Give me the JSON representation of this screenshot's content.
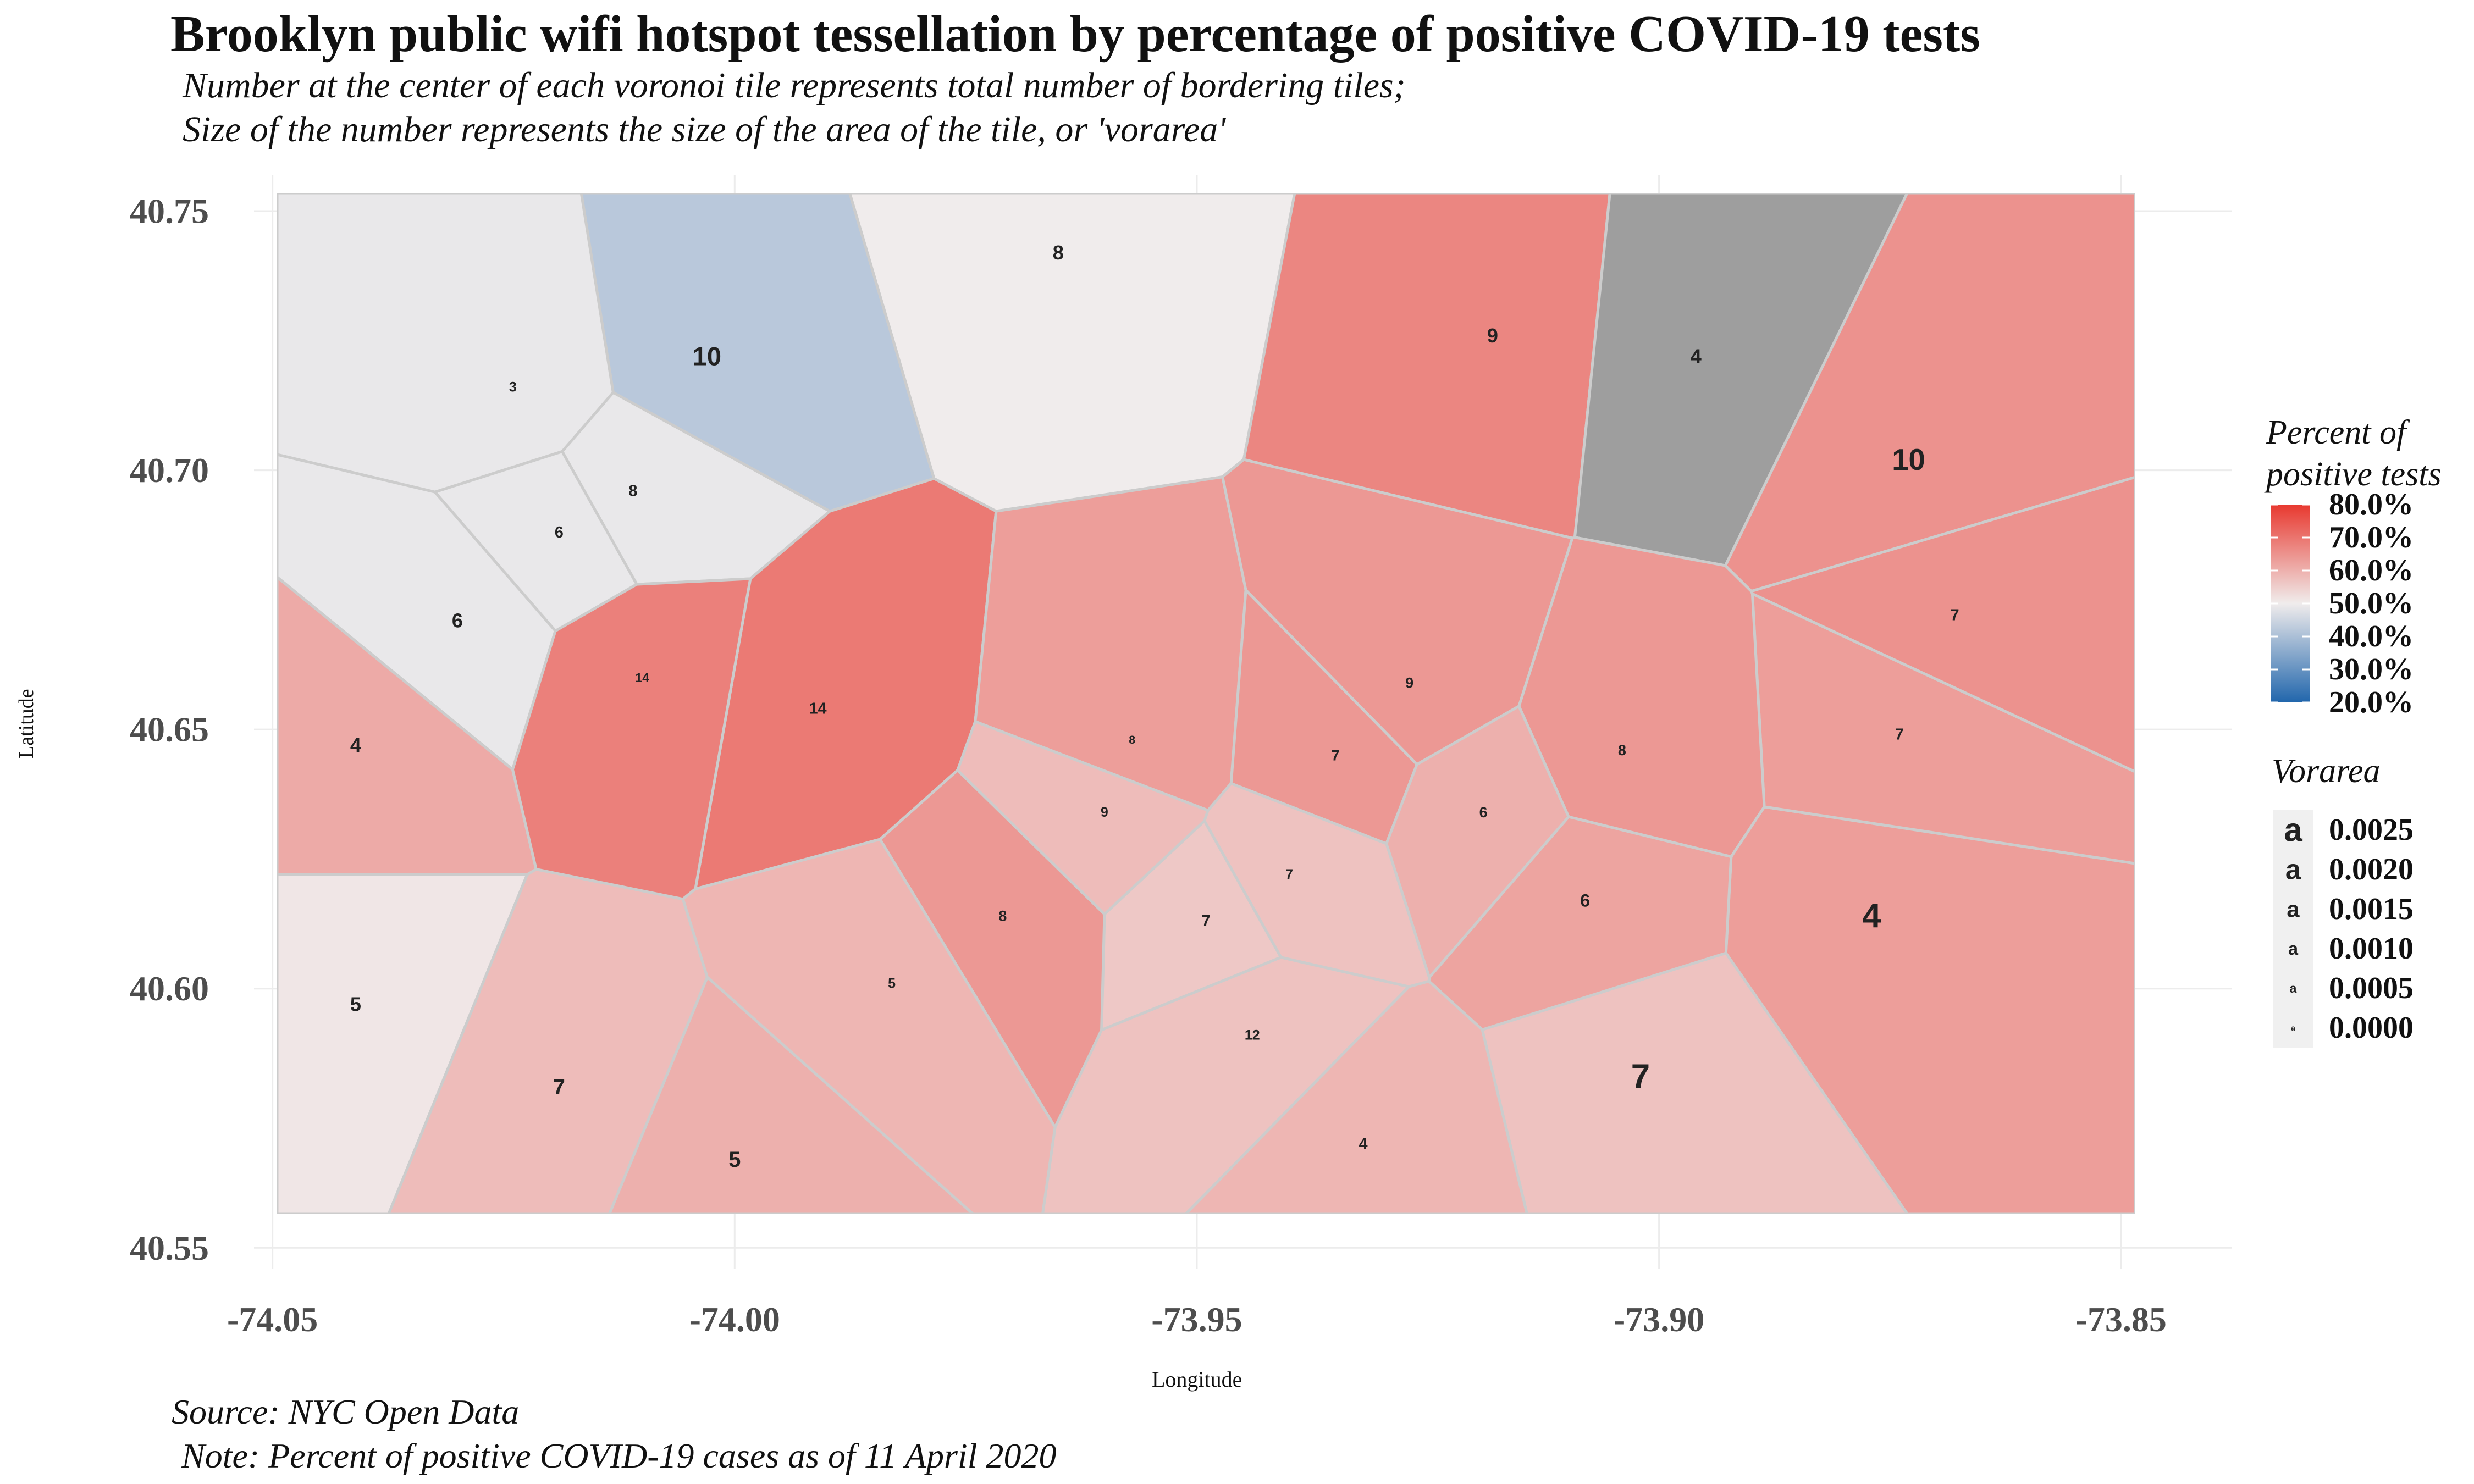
{
  "title": "Brooklyn public wifi hotspot tessellation by percentage of positive COVID-19 tests",
  "subtitle": [
    "Number at the center of each voronoi tile represents total number of bordering tiles;",
    "Size of the number represents the size of the area of the tile, or 'vorarea'"
  ],
  "caption": [
    "Source: NYC Open Data",
    "Note: Percent of positive COVID-19 cases as of 11 April 2020"
  ],
  "colors": {
    "low": "#2166ac",
    "mid": "#f0ecec",
    "high": "#e8382f",
    "tile_border": "#cccccc",
    "na_fill": "#9e9e9e",
    "grid": "#ececec"
  },
  "chart_data": {
    "type": "heatmap",
    "subtype": "voronoi tessellation map",
    "xlabel": "Longitude",
    "ylabel": "Latitude",
    "xlim": [
      -74.052,
      -73.838
    ],
    "ylim": [
      40.546,
      40.757
    ],
    "x_ticks": [
      -74.05,
      -74.0,
      -73.95,
      -73.9,
      -73.85
    ],
    "x_tick_labels": [
      "-74.05",
      "-74.00",
      "-73.95",
      "-73.90",
      "-73.85"
    ],
    "y_ticks": [
      40.55,
      40.6,
      40.65,
      40.7,
      40.75
    ],
    "y_tick_labels": [
      "40.55",
      "40.60",
      "40.65",
      "40.70",
      "40.75"
    ],
    "grid": true,
    "legend": {
      "fill_title": [
        "Percent of",
        "positive tests"
      ],
      "fill_range": [
        20,
        80
      ],
      "fill_midpoint": 50,
      "fill_labels": [
        "80.0%",
        "70.0%",
        "60.0%",
        "50.0%",
        "40.0%",
        "30.0%",
        "20.0%"
      ],
      "fill_values": [
        80,
        70,
        60,
        50,
        40,
        30,
        20
      ],
      "size_title": "Vorarea",
      "size_labels": [
        "0.0025",
        "0.0020",
        "0.0015",
        "0.0010",
        "0.0005",
        "0.0000"
      ],
      "size_values": [
        0.0025,
        0.002,
        0.0015,
        0.001,
        0.0005,
        0
      ],
      "size_key_glyph": "a",
      "placement": "right"
    },
    "tile_labels": [
      {
        "lon": -73.965,
        "lat": 40.742,
        "n": 8,
        "area": 0.0012,
        "pct": 50
      },
      {
        "lon": -74.003,
        "lat": 40.722,
        "n": 10,
        "area": 0.0018,
        "pct": 42
      },
      {
        "lon": -73.918,
        "lat": 40.726,
        "n": 9,
        "area": 0.0012,
        "pct": 67
      },
      {
        "lon": -73.896,
        "lat": 40.722,
        "n": 4,
        "area": 0.0012,
        "pct": null
      },
      {
        "lon": -73.873,
        "lat": 40.702,
        "n": 10,
        "area": 0.0022,
        "pct": 65
      },
      {
        "lon": -74.024,
        "lat": 40.716,
        "n": 3,
        "area": 0.0006,
        "pct": 49
      },
      {
        "lon": -74.011,
        "lat": 40.696,
        "n": 8,
        "area": 0.0008,
        "pct": 49
      },
      {
        "lon": -74.019,
        "lat": 40.688,
        "n": 6,
        "area": 0.0008,
        "pct": 49
      },
      {
        "lon": -74.03,
        "lat": 40.671,
        "n": 6,
        "area": 0.0012,
        "pct": 49
      },
      {
        "lon": -74.041,
        "lat": 40.647,
        "n": 4,
        "area": 0.0012,
        "pct": 61
      },
      {
        "lon": -74.041,
        "lat": 40.597,
        "n": 5,
        "area": 0.0012,
        "pct": 51
      },
      {
        "lon": -74.019,
        "lat": 40.581,
        "n": 7,
        "area": 0.0014,
        "pct": 58
      },
      {
        "lon": -74.0,
        "lat": 40.567,
        "n": 5,
        "area": 0.0014,
        "pct": 60
      },
      {
        "lon": -73.902,
        "lat": 40.583,
        "n": 7,
        "area": 0.0026,
        "pct": 57
      },
      {
        "lon": -73.877,
        "lat": 40.614,
        "n": 4,
        "area": 0.0026,
        "pct": 63
      },
      {
        "lon": -73.874,
        "lat": 40.649,
        "n": 7,
        "area": 0.0008,
        "pct": 63
      },
      {
        "lon": -73.868,
        "lat": 40.672,
        "n": 7,
        "area": 0.0008,
        "pct": 65
      },
      {
        "lon": -73.908,
        "lat": 40.617,
        "n": 6,
        "area": 0.001,
        "pct": 62
      },
      {
        "lon": -73.991,
        "lat": 40.654,
        "n": 14,
        "area": 0.0008,
        "pct": 69
      },
      {
        "lon": -74.01,
        "lat": 40.66,
        "n": 14,
        "area": 0.0005,
        "pct": 68
      },
      {
        "lon": -73.949,
        "lat": 40.613,
        "n": 7,
        "area": 0.0008,
        "pct": 56
      },
      {
        "lon": -73.944,
        "lat": 40.591,
        "n": 12,
        "area": 0.0006,
        "pct": 57
      },
      {
        "lon": -73.932,
        "lat": 40.57,
        "n": 4,
        "area": 0.0008,
        "pct": 59
      },
      {
        "lon": -73.983,
        "lat": 40.601,
        "n": 5,
        "area": 0.0006,
        "pct": 59
      },
      {
        "lon": -73.971,
        "lat": 40.614,
        "n": 8,
        "area": 0.0007,
        "pct": 64
      },
      {
        "lon": -73.957,
        "lat": 40.648,
        "n": 8,
        "area": 0.0004,
        "pct": 63
      },
      {
        "lon": -73.927,
        "lat": 40.659,
        "n": 9,
        "area": 0.0007,
        "pct": 64
      },
      {
        "lon": -73.935,
        "lat": 40.645,
        "n": 7,
        "area": 0.0007,
        "pct": 64
      },
      {
        "lon": -73.919,
        "lat": 40.634,
        "n": 6,
        "area": 0.0007,
        "pct": 60
      },
      {
        "lon": -73.904,
        "lat": 40.646,
        "n": 8,
        "area": 0.0007,
        "pct": 64
      },
      {
        "lon": -73.96,
        "lat": 40.634,
        "n": 9,
        "area": 0.0006,
        "pct": 58
      },
      {
        "lon": -73.94,
        "lat": 40.622,
        "n": 7,
        "area": 0.0006,
        "pct": 57
      }
    ]
  }
}
